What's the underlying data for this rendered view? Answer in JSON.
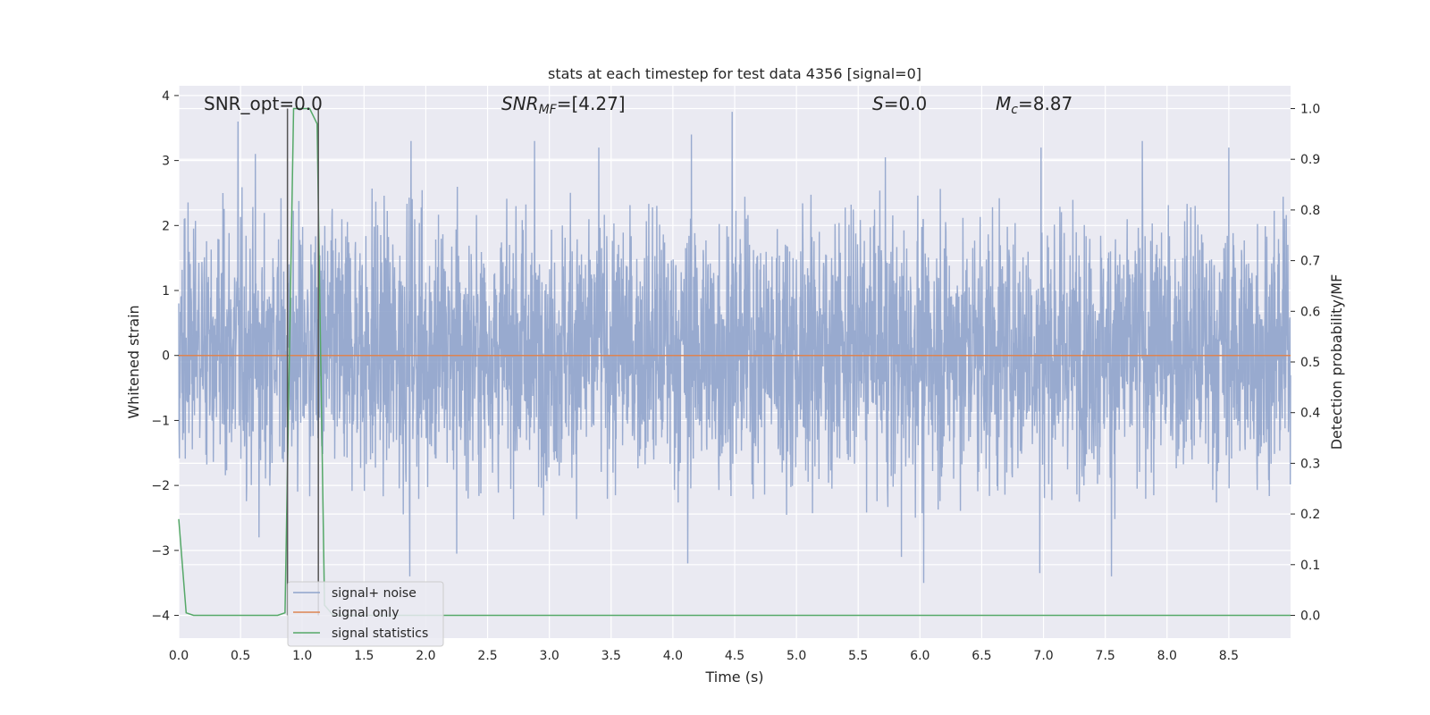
{
  "chart_data": {
    "type": "line",
    "title": "stats at each timestep for test data 4356 [signal=0]",
    "xlabel": "Time (s)",
    "ylabel": "Whitened strain",
    "ylabel_right": "Detection probability/MF",
    "xlim": [
      0.0,
      9.0
    ],
    "ylim": [
      -4.35,
      4.15
    ],
    "ylim_right": [
      -0.045,
      1.045
    ],
    "x_ticks": [
      0.0,
      0.5,
      1.0,
      1.5,
      2.0,
      2.5,
      3.0,
      3.5,
      4.0,
      4.5,
      5.0,
      5.5,
      6.0,
      6.5,
      7.0,
      7.5,
      8.0,
      8.5
    ],
    "x_tick_labels": [
      "0.0",
      "0.5",
      "1.0",
      "1.5",
      "2.0",
      "2.5",
      "3.0",
      "3.5",
      "4.0",
      "4.5",
      "5.0",
      "5.5",
      "6.0",
      "6.5",
      "7.0",
      "7.5",
      "8.0",
      "8.5"
    ],
    "y_ticks": [
      4,
      3,
      2,
      1,
      0,
      -1,
      -2,
      -3,
      -4
    ],
    "y_tick_labels": [
      "4",
      "3",
      "2",
      "1",
      "0",
      "−1",
      "−2",
      "−3",
      "−4"
    ],
    "y_right_ticks": [
      1.0,
      0.9,
      0.8,
      0.7,
      0.6,
      0.5,
      0.4,
      0.3,
      0.2,
      0.1,
      0.0
    ],
    "y_right_tick_labels": [
      "1.0",
      "0.9",
      "0.8",
      "0.7",
      "0.6",
      "0.5",
      "0.4",
      "0.3",
      "0.2",
      "0.1",
      "0.0"
    ],
    "grid": true,
    "legend_position": "lower-left",
    "annotations": {
      "snr_opt": "SNR_opt=0.0",
      "snr_mf_base": "SNR",
      "snr_mf_sub": "MF",
      "snr_mf_value": "=[4.27]",
      "s_symbol": "S",
      "s_value": "=0.0",
      "mc_symbol": "M",
      "mc_sub": "c",
      "mc_value": "=8.87"
    },
    "series": [
      {
        "name": "signal+ noise",
        "color": "#8fa3cb",
        "axis": "left",
        "kind": "noise",
        "x_range": [
          0.0,
          9.0
        ],
        "typical_band": [
          -1.7,
          1.9
        ],
        "peaks": [
          {
            "x": 0.48,
            "y": 3.6
          },
          {
            "x": 0.62,
            "y": 3.1
          },
          {
            "x": 1.88,
            "y": 3.3
          },
          {
            "x": 2.88,
            "y": 3.3
          },
          {
            "x": 3.4,
            "y": 3.2
          },
          {
            "x": 4.15,
            "y": 3.4
          },
          {
            "x": 4.48,
            "y": 3.75
          },
          {
            "x": 5.72,
            "y": 3.05
          },
          {
            "x": 6.98,
            "y": 3.2
          },
          {
            "x": 7.8,
            "y": 3.3
          },
          {
            "x": 8.5,
            "y": 3.2
          }
        ],
        "troughs": [
          {
            "x": 1.87,
            "y": -3.4
          },
          {
            "x": 4.12,
            "y": -3.2
          },
          {
            "x": 6.03,
            "y": -3.5
          },
          {
            "x": 6.97,
            "y": -3.35
          },
          {
            "x": 7.55,
            "y": -3.4
          },
          {
            "x": 0.65,
            "y": -2.8
          },
          {
            "x": 2.25,
            "y": -3.05
          },
          {
            "x": 5.85,
            "y": -3.1
          }
        ]
      },
      {
        "name": "signal only",
        "color": "#dd8452",
        "axis": "left",
        "x": [
          0.0,
          9.0
        ],
        "values": [
          0.0,
          0.0
        ]
      },
      {
        "name": "signal statistics",
        "color": "#55a868",
        "axis": "right",
        "x": [
          0.0,
          0.06,
          0.12,
          0.2,
          0.8,
          0.86,
          0.93,
          0.99,
          1.06,
          1.12,
          1.18,
          1.25,
          9.0
        ],
        "values": [
          0.19,
          0.005,
          0.0,
          0.0,
          0.0,
          0.005,
          1.0,
          1.0,
          1.0,
          0.97,
          0.02,
          0.0,
          0.0
        ]
      }
    ],
    "vlines": [
      {
        "x": 0.88,
        "range_right": [
          0.0,
          1.0
        ]
      },
      {
        "x": 1.13,
        "range_right": [
          0.0,
          1.0
        ]
      }
    ]
  }
}
